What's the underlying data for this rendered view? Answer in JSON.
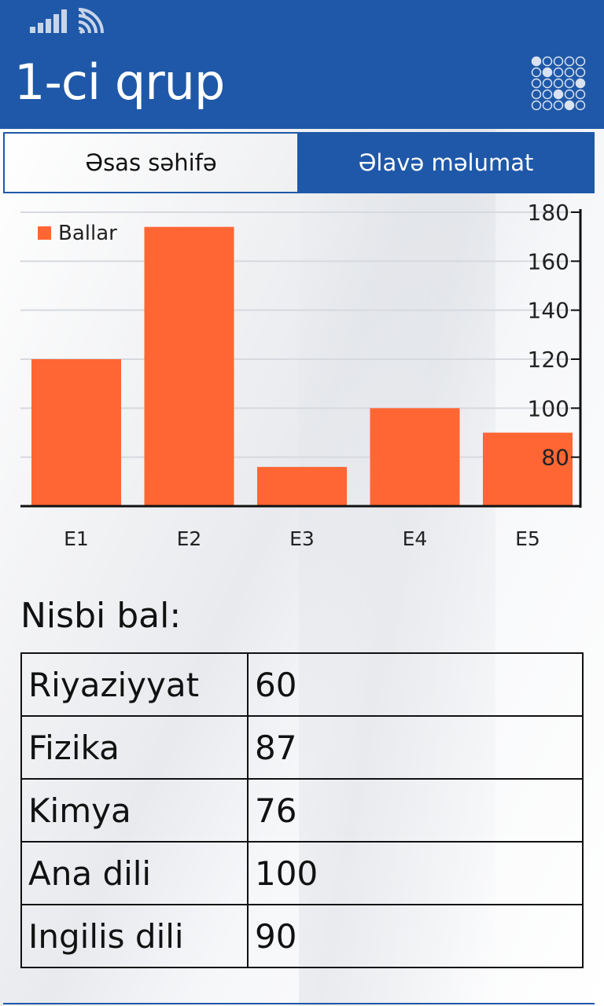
{
  "app": {
    "title": "1-ci qrup"
  },
  "icons": {
    "signal": "signal-bars-icon",
    "wifi": "wifi-icon",
    "logo": "answer-sheet-icon"
  },
  "tabs": [
    {
      "label": "Əsas səhifə",
      "active": false
    },
    {
      "label": "Əlavə məlumat",
      "active": true
    }
  ],
  "colors": {
    "accent": "#1f58a8",
    "bar": "#ff6633"
  },
  "chart_data": {
    "type": "bar",
    "categories": [
      "E1",
      "E2",
      "E3",
      "E4",
      "E5"
    ],
    "series": [
      {
        "name": "Ballar",
        "values": [
          120,
          174,
          76,
          100,
          90
        ]
      }
    ],
    "ylim": [
      60,
      180
    ],
    "yticks": [
      80,
      100,
      120,
      140,
      160,
      180
    ],
    "grid": true,
    "legend": "top-left",
    "y_axis_side": "right"
  },
  "section": {
    "title": "Nisbi bal:"
  },
  "scores": [
    {
      "subject": "Riyaziyyat",
      "value": "60"
    },
    {
      "subject": "Fizika",
      "value": "87"
    },
    {
      "subject": "Kimya",
      "value": "76"
    },
    {
      "subject": "Ana dili",
      "value": "100"
    },
    {
      "subject": "Ingilis dili",
      "value": "90"
    }
  ]
}
